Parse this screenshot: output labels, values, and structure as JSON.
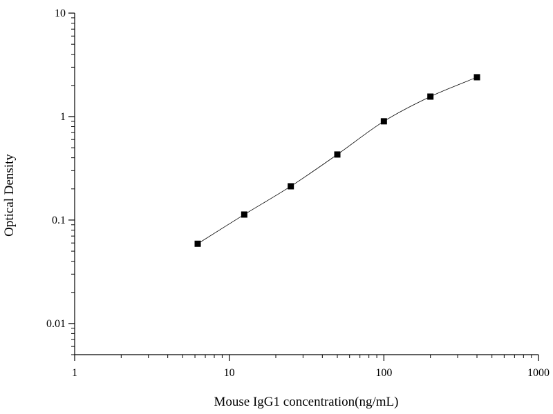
{
  "chart_data": {
    "type": "scatter",
    "title": "",
    "xlabel": "Mouse IgG1 concentration(ng/mL)",
    "ylabel": "Optical Density",
    "x_scale": "log",
    "y_scale": "log",
    "xlim": [
      1,
      1000
    ],
    "ylim": [
      0.005,
      10
    ],
    "x_ticks": [
      {
        "value": 1,
        "label": "1"
      },
      {
        "value": 10,
        "label": "10"
      },
      {
        "value": 100,
        "label": "100"
      },
      {
        "value": 1000,
        "label": "1000"
      }
    ],
    "y_ticks": [
      {
        "value": 0.01,
        "label": "0.01"
      },
      {
        "value": 0.1,
        "label": "0.1"
      },
      {
        "value": 1,
        "label": "1"
      },
      {
        "value": 10,
        "label": "10"
      }
    ],
    "grid": false,
    "legend": "none",
    "marker": "square",
    "fit_line": true,
    "series": [
      {
        "x": [
          6.25,
          12.5,
          25,
          50,
          100,
          200,
          400
        ],
        "y": [
          0.059,
          0.113,
          0.212,
          0.43,
          0.9,
          1.56,
          2.4
        ]
      }
    ],
    "colors": {
      "marker": "#000000",
      "line": "#000000",
      "axis": "#000000"
    }
  }
}
